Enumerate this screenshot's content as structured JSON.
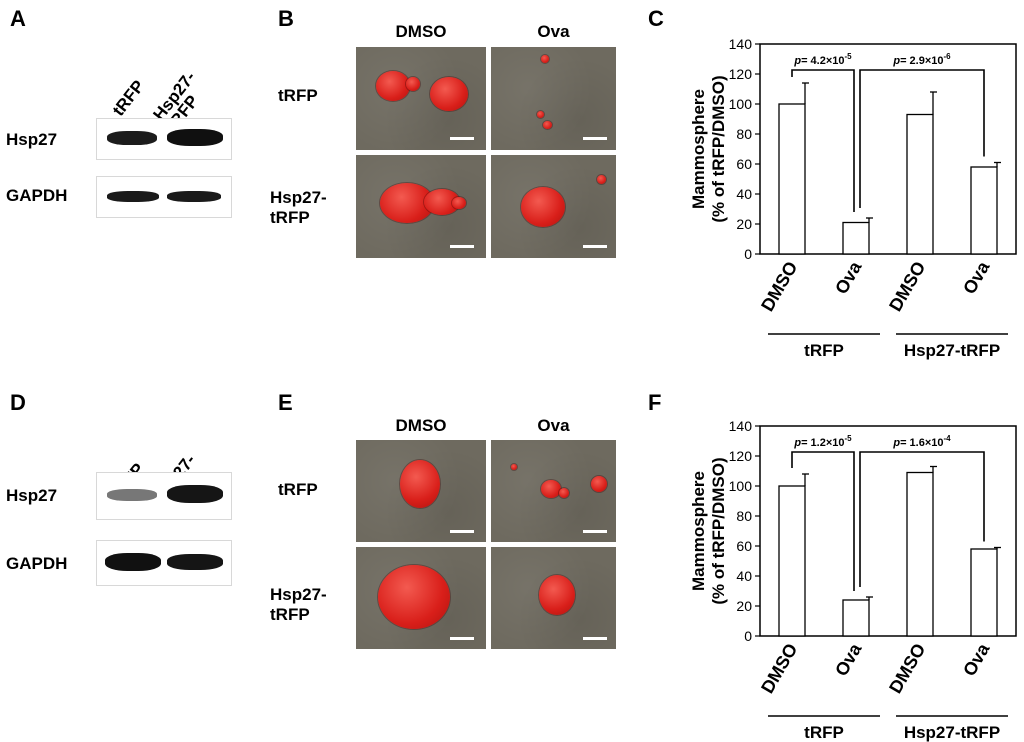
{
  "panels": {
    "A": "A",
    "B": "B",
    "C": "C",
    "D": "D",
    "E": "E",
    "F": "F"
  },
  "western": {
    "columns": [
      "tRFP",
      "Hsp27-\ntRFP"
    ],
    "rows": [
      "Hsp27",
      "GAPDH"
    ]
  },
  "micrographs": {
    "columns": [
      "DMSO",
      "Ova"
    ],
    "rows": [
      "tRFP",
      "Hsp27-\ntRFP"
    ]
  },
  "chart_data": [
    {
      "type": "bar",
      "panel": "C",
      "categories": [
        "DMSO",
        "Ova",
        "DMSO",
        "Ova"
      ],
      "groups": [
        {
          "label": "tRFP",
          "span": [
            0,
            1
          ]
        },
        {
          "label": "Hsp27-tRFP",
          "span": [
            2,
            3
          ]
        }
      ],
      "values": [
        100,
        21,
        93,
        58
      ],
      "errors": [
        14,
        3,
        15,
        3
      ],
      "ylabel": "Mammosphere\n(% of tRFP/DMSO)",
      "ylim": [
        0,
        140
      ],
      "yticks": [
        0,
        20,
        40,
        60,
        80,
        100,
        120,
        140
      ],
      "annotations": [
        {
          "prefix": "p",
          "text": "= 4.2×10",
          "exp": "-5",
          "from": 0,
          "to": 1
        },
        {
          "prefix": "p",
          "text": "= 2.9×10",
          "exp": "-6",
          "from": 1,
          "to": 3
        }
      ]
    },
    {
      "type": "bar",
      "panel": "F",
      "categories": [
        "DMSO",
        "Ova",
        "DMSO",
        "Ova"
      ],
      "groups": [
        {
          "label": "tRFP",
          "span": [
            0,
            1
          ]
        },
        {
          "label": "Hsp27-tRFP",
          "span": [
            2,
            3
          ]
        }
      ],
      "values": [
        100,
        24,
        109,
        58
      ],
      "errors": [
        8,
        2,
        4,
        1
      ],
      "ylabel": "Mammosphere\n(% of tRFP/DMSO)",
      "ylim": [
        0,
        140
      ],
      "yticks": [
        0,
        20,
        40,
        60,
        80,
        100,
        120,
        140
      ],
      "annotations": [
        {
          "prefix": "p",
          "text": "= 1.2×10",
          "exp": "-5",
          "from": 0,
          "to": 1
        },
        {
          "prefix": "p",
          "text": "= 1.6×10",
          "exp": "-4",
          "from": 1,
          "to": 3
        }
      ]
    }
  ]
}
